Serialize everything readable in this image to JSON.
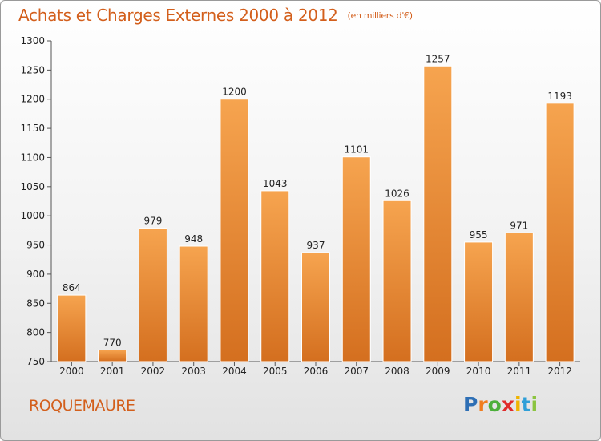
{
  "chart_data": {
    "type": "bar",
    "title": "Achats et Charges Externes 2000 à 2012",
    "subtitle": "(en milliers d'€)",
    "categories": [
      "2000",
      "2001",
      "2002",
      "2003",
      "2004",
      "2005",
      "2006",
      "2007",
      "2008",
      "2009",
      "2010",
      "2011",
      "2012"
    ],
    "values": [
      864,
      770,
      979,
      948,
      1200,
      1043,
      937,
      1101,
      1026,
      1257,
      955,
      971,
      1193
    ],
    "ylim": [
      750,
      1300
    ],
    "yticks": [
      750,
      800,
      850,
      900,
      950,
      1000,
      1050,
      1100,
      1150,
      1200,
      1250,
      1300
    ],
    "xlabel": "",
    "ylabel": "",
    "grid": false,
    "colors": {
      "bar_top": "#f6a44f",
      "bar_bottom": "#d46f1f",
      "text_accent": "#d35f1c"
    }
  },
  "footer": {
    "commune": "ROQUEMAURE",
    "logo": {
      "letters": [
        "P",
        "r",
        "o",
        "x",
        "i",
        "t",
        "i"
      ],
      "colors": [
        "#2e6fb5",
        "#f07d1e",
        "#4caf3a",
        "#e02b2b",
        "#f0b400",
        "#2e9fd8",
        "#8bc43f"
      ]
    }
  }
}
